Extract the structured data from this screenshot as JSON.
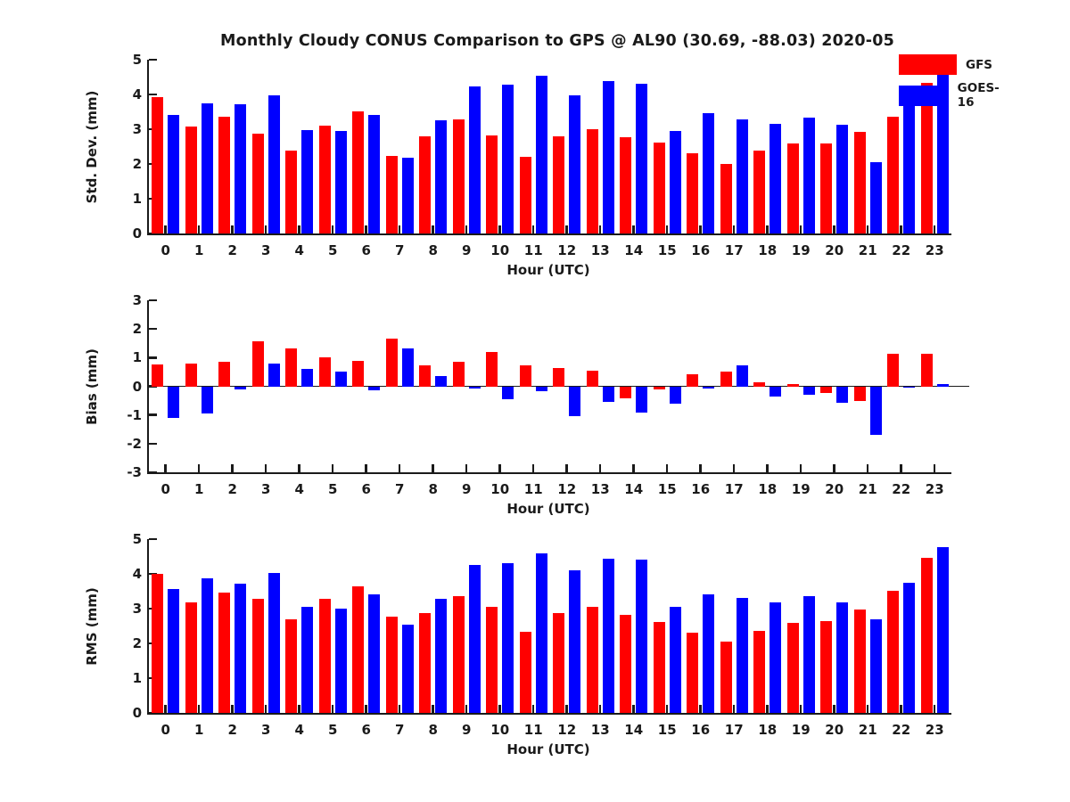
{
  "title": "Monthly Cloudy CONUS Comparison to GPS @ AL90 (30.69, -88.03) 2020-05",
  "colors": {
    "gfs": "#ff0000",
    "goes16": "#0000ff",
    "axis": "#1a1a1a",
    "background": "#ffffff"
  },
  "legend": {
    "position": "top-right",
    "items": [
      {
        "label": "GFS",
        "color": "#ff0000"
      },
      {
        "label": "GOES-16",
        "color": "#0000ff"
      }
    ]
  },
  "chart_data": [
    {
      "type": "bar",
      "name": "std-dev",
      "ylabel": "Std. Dev. (mm)",
      "xlabel": "Hour (UTC)",
      "ylim": [
        0,
        5
      ],
      "yticks": [
        0,
        1,
        2,
        3,
        4,
        5
      ],
      "grid": false,
      "categories": [
        0,
        1,
        2,
        3,
        4,
        5,
        6,
        7,
        8,
        9,
        10,
        11,
        12,
        13,
        14,
        15,
        16,
        17,
        18,
        19,
        20,
        21,
        22,
        23
      ],
      "series": [
        {
          "name": "GFS",
          "color": "#ff0000",
          "values": [
            3.93,
            3.08,
            3.35,
            2.88,
            2.38,
            3.1,
            3.52,
            2.22,
            2.8,
            3.27,
            2.82,
            2.2,
            2.8,
            3.0,
            2.78,
            2.62,
            2.3,
            2.0,
            2.38,
            2.6,
            2.6,
            2.93,
            3.37,
            4.33
          ]
        },
        {
          "name": "GOES-16",
          "color": "#0000ff",
          "values": [
            3.4,
            3.75,
            3.72,
            3.97,
            2.98,
            2.95,
            3.4,
            2.18,
            3.25,
            4.22,
            4.27,
            4.55,
            3.97,
            4.38,
            4.3,
            2.95,
            3.45,
            3.27,
            3.15,
            3.34,
            3.14,
            2.06,
            3.8,
            4.56
          ]
        }
      ]
    },
    {
      "type": "bar",
      "name": "bias",
      "ylabel": "Bias (mm)",
      "xlabel": "Hour (UTC)",
      "ylim": [
        -3,
        3
      ],
      "yticks": [
        -3,
        -2,
        -1,
        0,
        1,
        2,
        3
      ],
      "grid": false,
      "categories": [
        0,
        1,
        2,
        3,
        4,
        5,
        6,
        7,
        8,
        9,
        10,
        11,
        12,
        13,
        14,
        15,
        16,
        17,
        18,
        19,
        20,
        21,
        22,
        23
      ],
      "series": [
        {
          "name": "GFS",
          "color": "#ff0000",
          "values": [
            0.75,
            0.8,
            0.85,
            1.58,
            1.33,
            1.0,
            0.88,
            1.67,
            0.73,
            0.85,
            1.2,
            0.72,
            0.63,
            0.55,
            -0.42,
            -0.1,
            0.42,
            0.5,
            0.15,
            0.08,
            -0.22,
            -0.52,
            1.12,
            1.12
          ]
        },
        {
          "name": "GOES-16",
          "color": "#0000ff",
          "values": [
            -1.1,
            -0.95,
            -0.12,
            0.8,
            0.62,
            0.52,
            -0.15,
            1.33,
            0.35,
            -0.08,
            -0.45,
            -0.18,
            -1.05,
            -0.55,
            -0.92,
            -0.6,
            -0.07,
            0.73,
            -0.36,
            -0.3,
            -0.58,
            -1.68,
            -0.06,
            0.07
          ]
        }
      ]
    },
    {
      "type": "bar",
      "name": "rms",
      "ylabel": "RMS (mm)",
      "xlabel": "Hour (UTC)",
      "ylim": [
        0,
        5
      ],
      "yticks": [
        0,
        1,
        2,
        3,
        4,
        5
      ],
      "grid": false,
      "categories": [
        0,
        1,
        2,
        3,
        4,
        5,
        6,
        7,
        8,
        9,
        10,
        11,
        12,
        13,
        14,
        15,
        16,
        17,
        18,
        19,
        20,
        21,
        22,
        23
      ],
      "series": [
        {
          "name": "GFS",
          "color": "#ff0000",
          "values": [
            4.0,
            3.18,
            3.45,
            3.28,
            2.7,
            3.28,
            3.63,
            2.78,
            2.88,
            3.35,
            3.05,
            2.33,
            2.87,
            3.05,
            2.83,
            2.62,
            2.32,
            2.05,
            2.37,
            2.6,
            2.63,
            2.97,
            3.52,
            4.45
          ]
        },
        {
          "name": "GOES-16",
          "color": "#0000ff",
          "values": [
            3.57,
            3.88,
            3.73,
            4.03,
            3.05,
            3.0,
            3.4,
            2.55,
            3.28,
            4.25,
            4.3,
            4.58,
            4.1,
            4.43,
            4.4,
            3.04,
            3.42,
            3.32,
            3.18,
            3.35,
            3.17,
            2.68,
            3.75,
            4.78
          ]
        }
      ]
    }
  ]
}
